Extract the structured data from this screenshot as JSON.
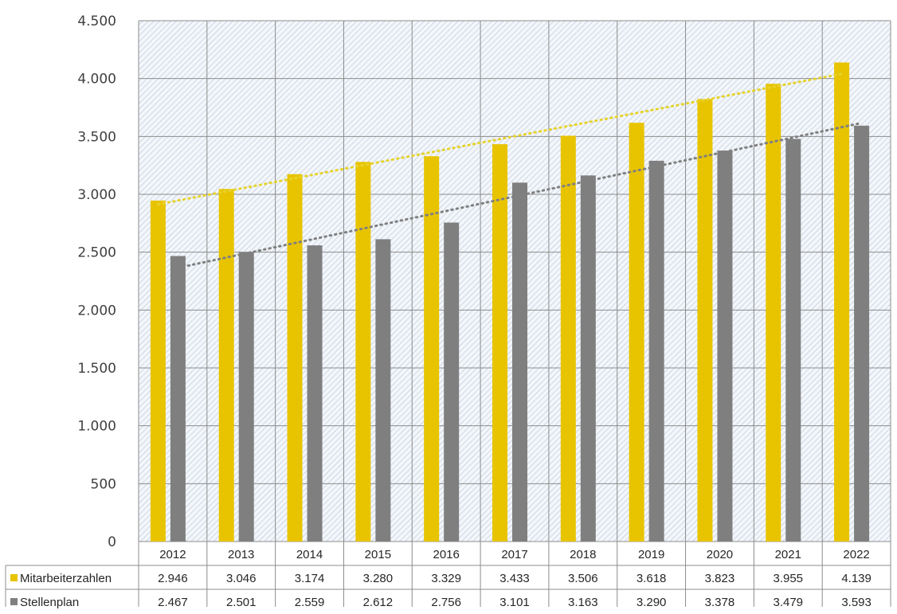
{
  "chart_data": {
    "type": "bar",
    "title": "",
    "xlabel": "",
    "ylabel": "",
    "categories": [
      "2012",
      "2013",
      "2014",
      "2015",
      "2016",
      "2017",
      "2018",
      "2019",
      "2020",
      "2021",
      "2022"
    ],
    "ylim": [
      0,
      4500
    ],
    "y_ticks": [
      0,
      500,
      1000,
      1500,
      2000,
      2500,
      3000,
      3500,
      4000,
      4500
    ],
    "y_tick_labels": [
      "0",
      "500",
      "1.000",
      "1.500",
      "2.000",
      "2.500",
      "3.000",
      "3.500",
      "4.000",
      "4.500"
    ],
    "grid": true,
    "plot_background": "hatched light blue-grey diagonal",
    "legend": "data table below chart",
    "trendline": "linear, dotted",
    "series": [
      {
        "name": "Mitarbeiterzahlen",
        "color": "#e8c400",
        "trend_color": "#e6d32e",
        "values": [
          2946,
          3046,
          3174,
          3280,
          3329,
          3433,
          3506,
          3618,
          3823,
          3955,
          4139
        ],
        "labels": [
          "2.946",
          "3.046",
          "3.174",
          "3.280",
          "3.329",
          "3.433",
          "3.506",
          "3.618",
          "3.823",
          "3.955",
          "4.139"
        ]
      },
      {
        "name": "Stellenplan",
        "color": "#7f7f7f",
        "trend_color": "#808080",
        "values": [
          2467,
          2501,
          2559,
          2612,
          2756,
          3101,
          3163,
          3290,
          3378,
          3479,
          3593
        ],
        "labels": [
          "2.467",
          "2.501",
          "2.559",
          "2.612",
          "2.756",
          "3.101",
          "3.163",
          "3.290",
          "3.378",
          "3.479",
          "3.593"
        ]
      }
    ]
  }
}
